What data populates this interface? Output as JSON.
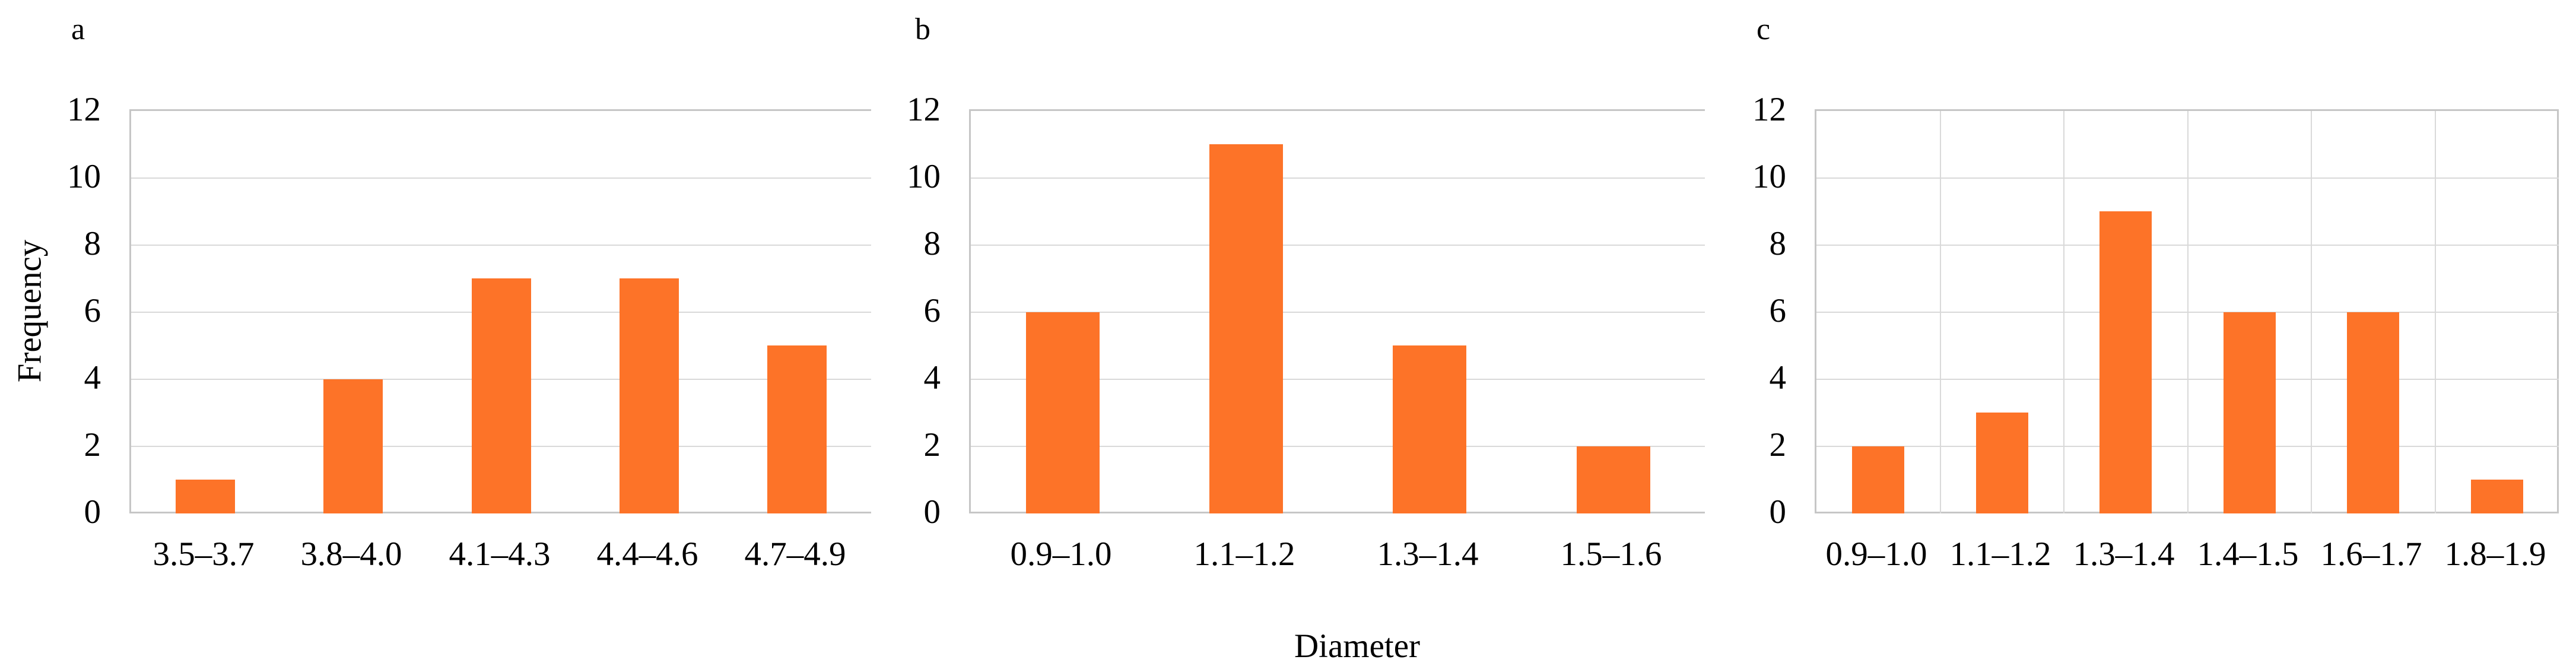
{
  "colors": {
    "bar": "#FD7328",
    "gridline": "#D9D9D9",
    "axis_border": "#C6C6C6",
    "text": "#000000",
    "background": "#FFFFFF"
  },
  "axis_titles": {
    "y": "Frequency",
    "x": "Diameter"
  },
  "chart_data": [
    {
      "type": "bar",
      "panel_label": "a",
      "categories": [
        "3.5–3.7",
        "3.8–4.0",
        "4.1–4.3",
        "4.4–4.6",
        "4.7–4.9"
      ],
      "values": [
        1,
        4,
        7,
        7,
        5
      ],
      "title": "",
      "xlabel": "",
      "ylabel": "Frequency",
      "ylim": [
        0,
        12
      ],
      "yticks": [
        0,
        2,
        4,
        6,
        8,
        10,
        12
      ],
      "grid": "horizontal",
      "legend": false
    },
    {
      "type": "bar",
      "panel_label": "b",
      "categories": [
        "0.9–1.0",
        "1.1–1.2",
        "1.3–1.4",
        "1.5–1.6"
      ],
      "values": [
        6,
        11,
        5,
        2
      ],
      "title": "",
      "xlabel": "Diameter",
      "ylabel": "",
      "ylim": [
        0,
        12
      ],
      "yticks": [
        0,
        2,
        4,
        6,
        8,
        10,
        12
      ],
      "grid": "horizontal",
      "legend": false
    },
    {
      "type": "bar",
      "panel_label": "c",
      "categories": [
        "0.9–1.0",
        "1.1–1.2",
        "1.3–1.4",
        "1.4–1.5",
        "1.6–1.7",
        "1.8–1.9"
      ],
      "values": [
        2,
        3,
        9,
        6,
        6,
        1
      ],
      "title": "",
      "xlabel": "",
      "ylabel": "",
      "ylim": [
        0,
        12
      ],
      "yticks": [
        0,
        2,
        4,
        6,
        8,
        10,
        12
      ],
      "grid": "both",
      "legend": false
    }
  ]
}
